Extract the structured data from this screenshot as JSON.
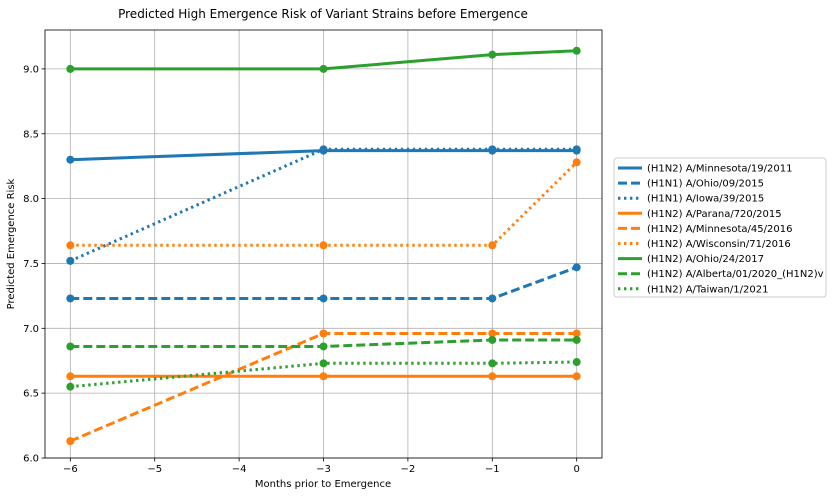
{
  "chart_data": {
    "type": "line",
    "title": "Predicted High Emergence Risk of Variant Strains before Emergence",
    "xlabel": "Months prior to Emergence",
    "ylabel": "Predicted Emergence Risk",
    "xlim": [
      -6.3,
      0.3
    ],
    "ylim": [
      6.0,
      9.3
    ],
    "xticks": [
      -6,
      -5,
      -4,
      -3,
      -2,
      -1,
      0
    ],
    "yticks": [
      6.0,
      6.5,
      7.0,
      7.5,
      8.0,
      8.5,
      9.0
    ],
    "grid": true,
    "legend_position": "right-outside",
    "x": [
      -6,
      -3,
      -1,
      0
    ],
    "series": [
      {
        "name": "(H1N2) A/Minnesota/19/2011",
        "color": "#1f77b4",
        "style": "solid",
        "values": [
          8.3,
          8.37,
          8.37,
          8.37
        ]
      },
      {
        "name": "(H1N1) A/Ohio/09/2015",
        "color": "#1f77b4",
        "style": "dashed",
        "values": [
          7.23,
          7.23,
          7.23,
          7.47
        ]
      },
      {
        "name": "(H1N1) A/Iowa/39/2015",
        "color": "#1f77b4",
        "style": "dotted",
        "values": [
          7.52,
          8.38,
          8.38,
          8.38
        ]
      },
      {
        "name": "(H1N2) A/Parana/720/2015",
        "color": "#ff7f0e",
        "style": "solid",
        "values": [
          6.63,
          6.63,
          6.63,
          6.63
        ]
      },
      {
        "name": "(H1N2) A/Minnesota/45/2016",
        "color": "#ff7f0e",
        "style": "dashed",
        "values": [
          6.13,
          6.96,
          6.96,
          6.96
        ]
      },
      {
        "name": "(H1N2) A/Wisconsin/71/2016",
        "color": "#ff7f0e",
        "style": "dotted",
        "values": [
          7.64,
          7.64,
          7.64,
          8.28
        ]
      },
      {
        "name": "(H1N2) A/Ohio/24/2017",
        "color": "#2ca02c",
        "style": "solid",
        "values": [
          9.0,
          9.0,
          9.11,
          9.14
        ]
      },
      {
        "name": "(H1N2) A/Alberta/01/2020_(H1N2)v",
        "color": "#2ca02c",
        "style": "dashed",
        "values": [
          6.86,
          6.86,
          6.91,
          6.91
        ]
      },
      {
        "name": "(H1N2) A/Taiwan/1/2021",
        "color": "#2ca02c",
        "style": "dotted",
        "values": [
          6.55,
          6.73,
          6.73,
          6.74
        ]
      }
    ]
  }
}
